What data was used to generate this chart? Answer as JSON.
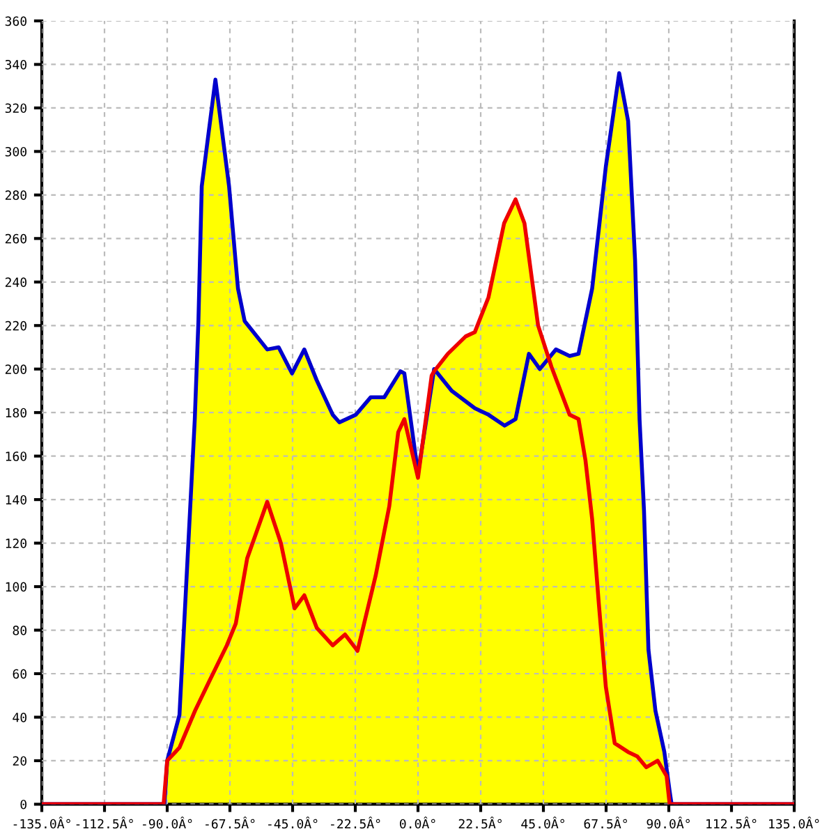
{
  "chart_data": {
    "type": "area",
    "color": "#ffff00",
    "series": [
      {
        "type": "line",
        "color": "#0000cc",
        "x": [
          -135,
          -91,
          -90,
          -85.6,
          -80.1,
          -78.8,
          -77.6,
          -72.7,
          -67.8,
          -64.6,
          -62.2,
          -59.7,
          -54.1,
          -50,
          -45.2,
          -40.8,
          -36.4,
          -30.6,
          -28.2,
          -22.3,
          -17,
          -12.1,
          -6.3,
          -4.9,
          0,
          5.8,
          12.1,
          20.4,
          25.3,
          31.1,
          35,
          39.8,
          43.7,
          49.5,
          54.4,
          57.6,
          62.5,
          67.4,
          72.2,
          75.4,
          77.9,
          79.5,
          81.1,
          82.7,
          85.2,
          88.4,
          90.3,
          91,
          135
        ],
        "values": [
          0,
          0,
          20,
          41,
          177,
          222,
          284,
          333,
          284,
          237,
          222,
          218,
          209,
          210,
          198,
          209,
          195,
          179,
          175.5,
          179,
          187,
          187,
          199,
          198,
          152,
          200,
          190,
          182,
          179,
          174,
          177,
          207,
          200,
          209,
          206,
          207,
          237,
          293,
          336,
          314,
          250,
          177,
          135,
          71,
          43,
          24,
          6,
          0,
          0
        ]
      },
      {
        "type": "line",
        "color": "#ee0000",
        "x": [
          -135,
          -91.3,
          -90,
          -85.6,
          -80,
          -75.1,
          -68.6,
          -65.4,
          -61.3,
          -54.1,
          -49.2,
          -44.3,
          -40.8,
          -36.3,
          -30.6,
          -26.2,
          -21.7,
          -15.2,
          -10.3,
          -7.1,
          -4.9,
          0,
          4.9,
          5.8,
          10.7,
          17.1,
          20.4,
          25.3,
          30.9,
          35,
          38.2,
          43.1,
          47.9,
          54.4,
          57.6,
          60.1,
          62.5,
          64.9,
          67.4,
          70.6,
          75.4,
          78.7,
          81.9,
          86,
          89.2,
          90.3,
          135
        ],
        "values": [
          0,
          0,
          20,
          26,
          43,
          56,
          73,
          83,
          113,
          139,
          120,
          90,
          96,
          81,
          73,
          78,
          70.5,
          105,
          137,
          171,
          177,
          150,
          197,
          199,
          207,
          215,
          217,
          233,
          267,
          278,
          267,
          220,
          201,
          179,
          177,
          158,
          131,
          92,
          54,
          28,
          24,
          22,
          17,
          20,
          13,
          0,
          0
        ]
      }
    ],
    "xlim": [
      -135,
      135
    ],
    "ylim": [
      0,
      360
    ],
    "xticks": [
      {
        "value": -135,
        "label": "-135.0Â°"
      },
      {
        "value": -112.5,
        "label": "-112.5Â°"
      },
      {
        "value": -90,
        "label": "-90.0Â°"
      },
      {
        "value": -67.5,
        "label": "-67.5Â°"
      },
      {
        "value": -45,
        "label": "-45.0Â°"
      },
      {
        "value": -22.5,
        "label": "-22.5Â°"
      },
      {
        "value": 0,
        "label": "0.0Â°"
      },
      {
        "value": 22.5,
        "label": "22.5Â°"
      },
      {
        "value": 45,
        "label": "45.0Â°"
      },
      {
        "value": 67.5,
        "label": "67.5Â°"
      },
      {
        "value": 90,
        "label": "90.0Â°"
      },
      {
        "value": 112.5,
        "label": "112.5Â°"
      },
      {
        "value": 135,
        "label": "135.0Â°"
      }
    ],
    "yticks": [
      0,
      20,
      40,
      60,
      80,
      100,
      120,
      140,
      160,
      180,
      200,
      220,
      240,
      260,
      280,
      300,
      320,
      340,
      360
    ],
    "grid": true,
    "line_style": "solid",
    "legend": false
  }
}
